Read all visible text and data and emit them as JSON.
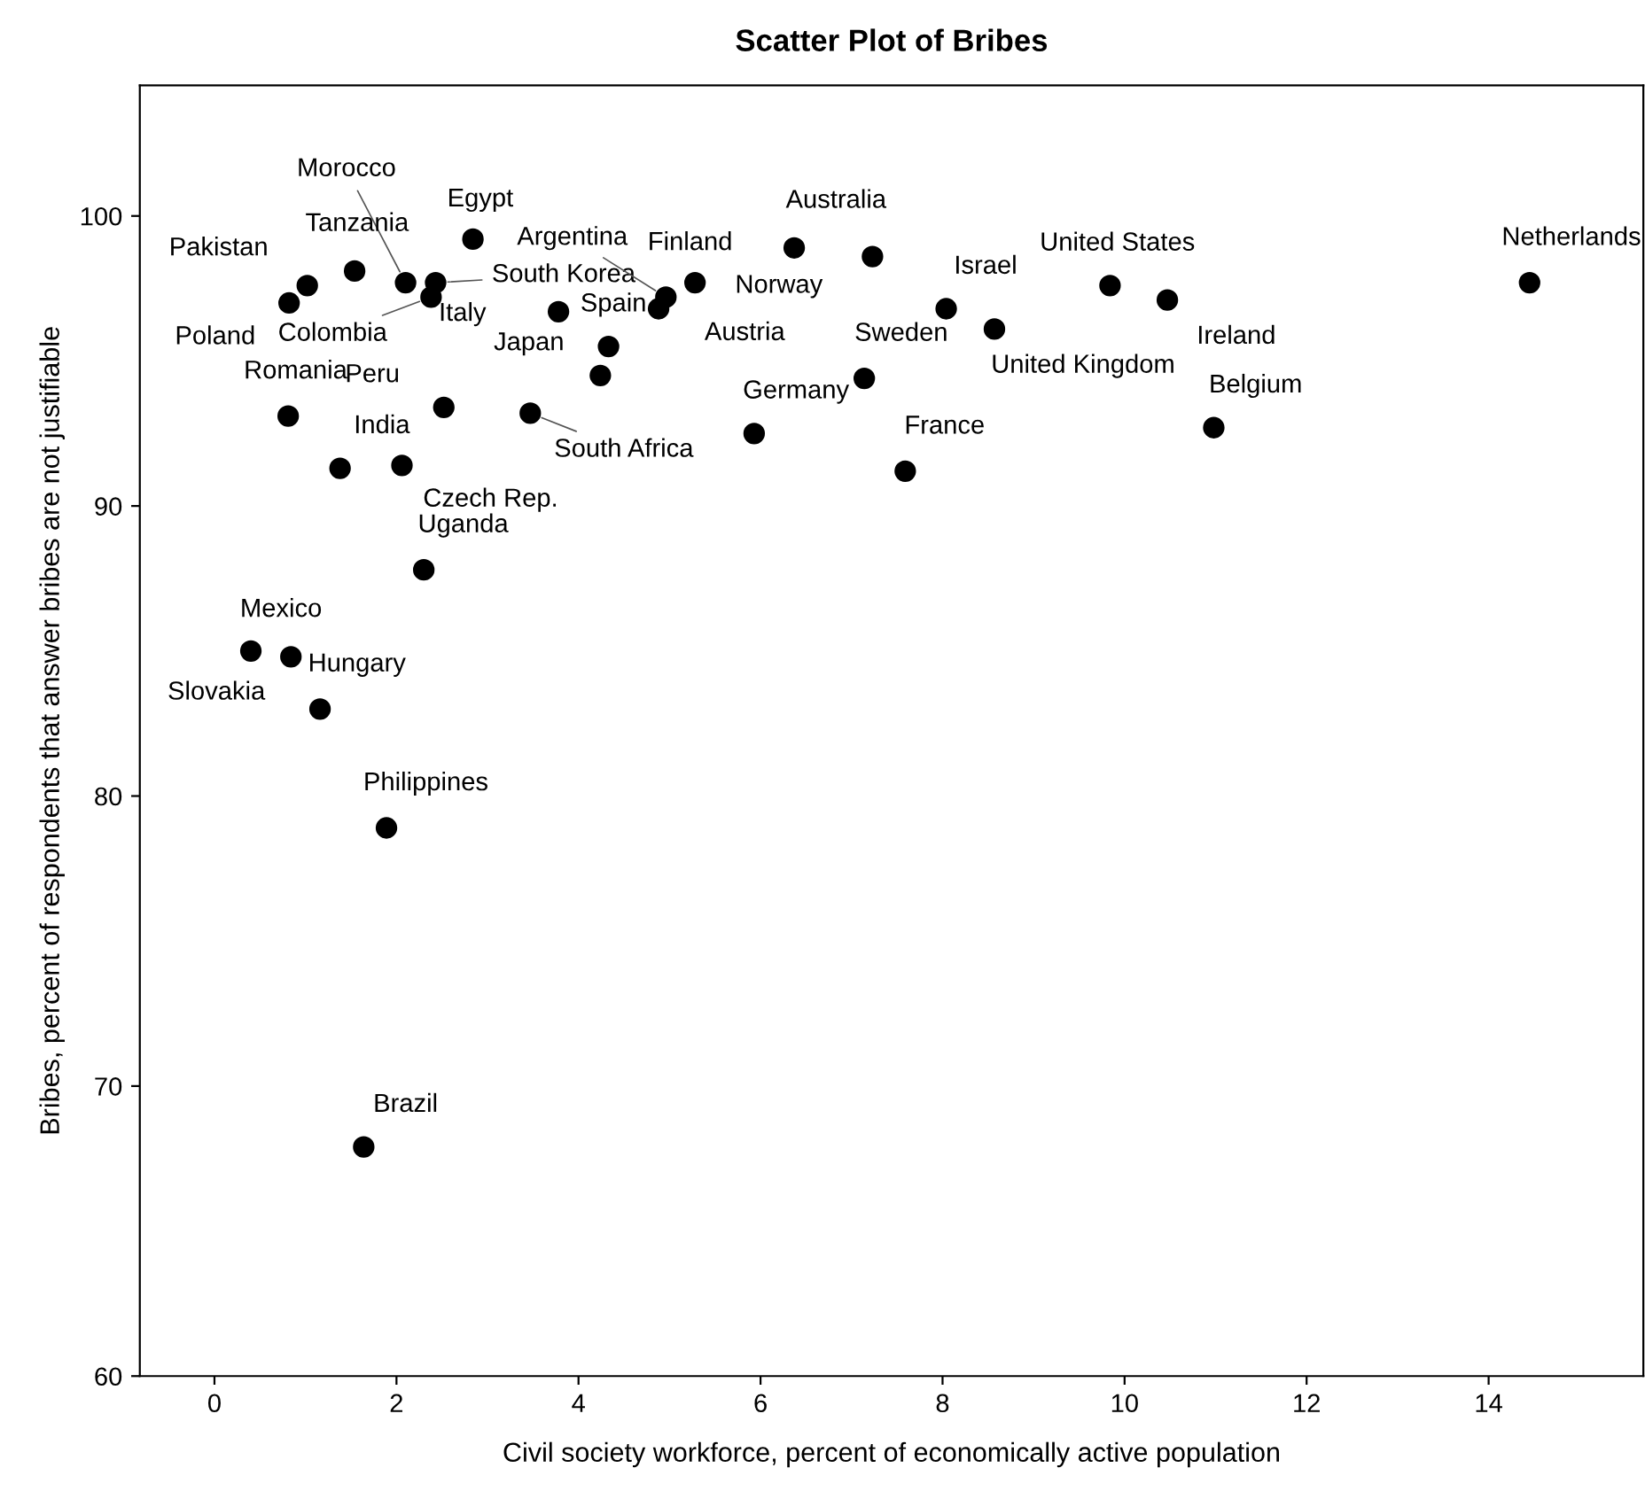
{
  "chart_data": {
    "type": "scatter",
    "title": "Scatter Plot of Bribes",
    "xlabel": "Civil society workforce, percent of economically active population",
    "ylabel": "Bribes, percent of respondents that answer bribes are not justifiable",
    "xlim": [
      -0.82,
      15.7
    ],
    "ylim": [
      60,
      104.5
    ],
    "xticks": [
      0,
      2,
      4,
      6,
      8,
      10,
      12,
      14
    ],
    "yticks": [
      60,
      70,
      80,
      90,
      100
    ],
    "grid": false,
    "marker": "circle",
    "series": [
      {
        "color": "#000000",
        "x": [
          2.1,
          1.54,
          2.38,
          2.43,
          3.78,
          4.33,
          4.24,
          4.96,
          4.88,
          5.28,
          2.84,
          1.02,
          0.82,
          6.37,
          7.23,
          8.04,
          8.57,
          9.84,
          10.47,
          7.14,
          5.93,
          7.59,
          10.98,
          14.45,
          0.81,
          2.52,
          3.47,
          1.38,
          2.06,
          2.3,
          0.84,
          0.4,
          1.16,
          1.89,
          1.64
        ],
        "values": [
          97.7,
          98.1,
          97.2,
          97.7,
          96.7,
          95.5,
          94.5,
          97.2,
          96.8,
          97.7,
          99.2,
          97.6,
          97.0,
          98.9,
          98.6,
          96.8,
          96.1,
          97.6,
          97.1,
          94.4,
          92.5,
          91.2,
          92.7,
          97.7,
          93.1,
          93.4,
          93.2,
          91.3,
          91.4,
          87.8,
          84.8,
          85.0,
          83.0,
          78.9,
          67.9
        ]
      }
    ],
    "annotations": [
      {
        "text": "Morocco",
        "x": 2.1,
        "y": 97.7
      },
      {
        "text": "Tanzania",
        "x": 1.54,
        "y": 98.1
      },
      {
        "text": "Colombia",
        "x": 2.38,
        "y": 97.2
      },
      {
        "text": "South Korea",
        "x": 2.43,
        "y": 97.7
      },
      {
        "text": "Italy",
        "x": 3.78,
        "y": 96.7
      },
      {
        "text": "Spain",
        "x": 4.33,
        "y": 95.5
      },
      {
        "text": "Japan",
        "x": 4.24,
        "y": 94.5
      },
      {
        "text": "Argentina",
        "x": 4.96,
        "y": 97.2
      },
      {
        "text": "Austria",
        "x": 4.88,
        "y": 96.8
      },
      {
        "text": "Finland",
        "x": 5.28,
        "y": 97.7
      },
      {
        "text": "Egypt",
        "x": 2.84,
        "y": 99.2
      },
      {
        "text": "Pakistan",
        "x": 1.02,
        "y": 97.6
      },
      {
        "text": "Poland",
        "x": 0.82,
        "y": 97.0
      },
      {
        "text": "Australia",
        "x": 6.37,
        "y": 98.9
      },
      {
        "text": "Norway",
        "x": 7.23,
        "y": 98.6
      },
      {
        "text": "Israel",
        "x": 8.04,
        "y": 96.8
      },
      {
        "text": "United Kingdom",
        "x": 8.57,
        "y": 96.1
      },
      {
        "text": "United States",
        "x": 9.84,
        "y": 97.6
      },
      {
        "text": "Ireland",
        "x": 10.47,
        "y": 97.1
      },
      {
        "text": "Sweden",
        "x": 7.14,
        "y": 94.4
      },
      {
        "text": "Germany",
        "x": 5.93,
        "y": 92.5
      },
      {
        "text": "France",
        "x": 7.59,
        "y": 91.2
      },
      {
        "text": "Belgium",
        "x": 10.98,
        "y": 92.7
      },
      {
        "text": "Netherlands",
        "x": 14.45,
        "y": 97.7
      },
      {
        "text": "Romania",
        "x": 0.81,
        "y": 93.1
      },
      {
        "text": "Peru",
        "x": 2.52,
        "y": 93.4
      },
      {
        "text": "South Africa",
        "x": 3.47,
        "y": 93.2
      },
      {
        "text": "India",
        "x": 1.38,
        "y": 91.3
      },
      {
        "text": "Czech Rep.",
        "x": 2.06,
        "y": 91.4
      },
      {
        "text": "Uganda",
        "x": 2.3,
        "y": 87.8
      },
      {
        "text": "Mexico",
        "x": 0.84,
        "y": 84.8
      },
      {
        "text": "Slovakia",
        "x": 0.4,
        "y": 85.0
      },
      {
        "text": "Hungary",
        "x": 1.16,
        "y": 83.0
      },
      {
        "text": "Philippines",
        "x": 1.89,
        "y": 78.9
      },
      {
        "text": "Brazil",
        "x": 1.64,
        "y": 67.9
      }
    ]
  }
}
